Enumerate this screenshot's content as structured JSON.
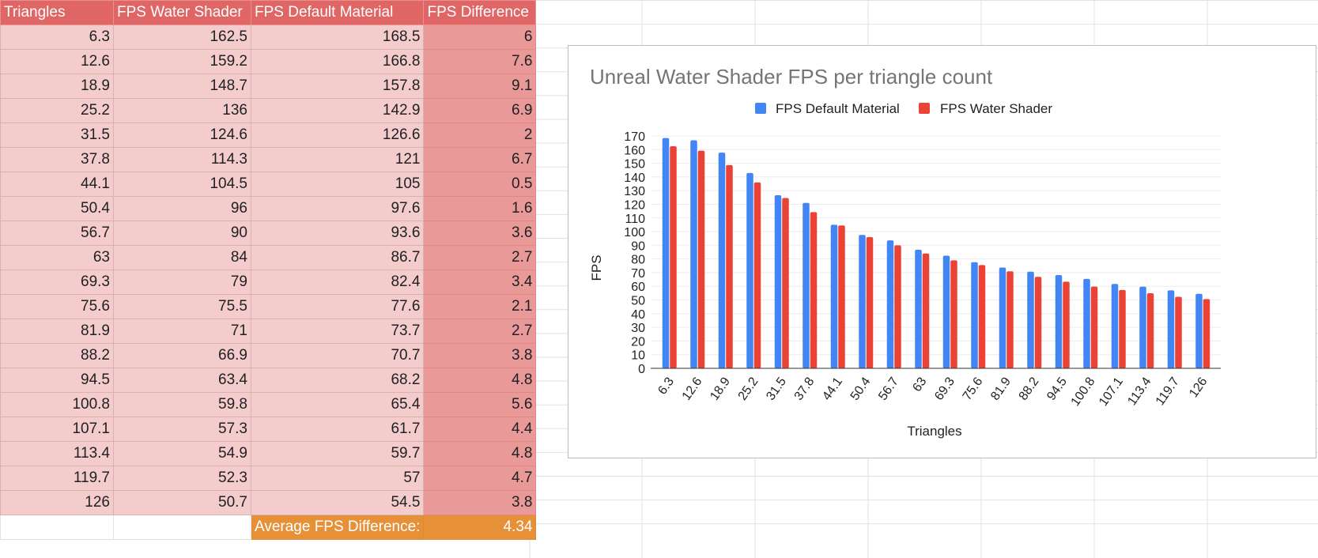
{
  "table": {
    "headers": [
      "Triangles",
      "FPS Water Shader",
      "FPS Default Material",
      "FPS Difference"
    ],
    "rows": [
      [
        "6.3",
        "162.5",
        "168.5",
        "6"
      ],
      [
        "12.6",
        "159.2",
        "166.8",
        "7.6"
      ],
      [
        "18.9",
        "148.7",
        "157.8",
        "9.1"
      ],
      [
        "25.2",
        "136",
        "142.9",
        "6.9"
      ],
      [
        "31.5",
        "124.6",
        "126.6",
        "2"
      ],
      [
        "37.8",
        "114.3",
        "121",
        "6.7"
      ],
      [
        "44.1",
        "104.5",
        "105",
        "0.5"
      ],
      [
        "50.4",
        "96",
        "97.6",
        "1.6"
      ],
      [
        "56.7",
        "90",
        "93.6",
        "3.6"
      ],
      [
        "63",
        "84",
        "86.7",
        "2.7"
      ],
      [
        "69.3",
        "79",
        "82.4",
        "3.4"
      ],
      [
        "75.6",
        "75.5",
        "77.6",
        "2.1"
      ],
      [
        "81.9",
        "71",
        "73.7",
        "2.7"
      ],
      [
        "88.2",
        "66.9",
        "70.7",
        "3.8"
      ],
      [
        "94.5",
        "63.4",
        "68.2",
        "4.8"
      ],
      [
        "100.8",
        "59.8",
        "65.4",
        "5.6"
      ],
      [
        "107.1",
        "57.3",
        "61.7",
        "4.4"
      ],
      [
        "113.4",
        "54.9",
        "59.7",
        "4.8"
      ],
      [
        "119.7",
        "52.3",
        "57",
        "4.7"
      ],
      [
        "126",
        "50.7",
        "54.5",
        "3.8"
      ]
    ],
    "average_label": "Average FPS Difference:",
    "average_value": "4.34"
  },
  "colors": {
    "header_bg": "#e06666",
    "cell_bg": "#f4cccc",
    "diff_bg": "#ea9999",
    "average_bg": "#e69138",
    "series_default": "#4285f4",
    "series_water": "#ea4335"
  },
  "chart_data": {
    "type": "bar",
    "title": "Unreal Water Shader FPS per triangle count",
    "xlabel": "Triangles",
    "ylabel": "FPS",
    "categories": [
      "6.3",
      "12.6",
      "18.9",
      "25.2",
      "31.5",
      "37.8",
      "44.1",
      "50.4",
      "56.7",
      "63",
      "69.3",
      "75.6",
      "81.9",
      "88.2",
      "94.5",
      "100.8",
      "107.1",
      "113.4",
      "119.7",
      "126"
    ],
    "series": [
      {
        "name": "FPS Default Material",
        "color": "#4285f4",
        "values": [
          168.5,
          166.8,
          157.8,
          142.9,
          126.6,
          121,
          105,
          97.6,
          93.6,
          86.7,
          82.4,
          77.6,
          73.7,
          70.7,
          68.2,
          65.4,
          61.7,
          59.7,
          57,
          54.5
        ]
      },
      {
        "name": "FPS Water Shader",
        "color": "#ea4335",
        "values": [
          162.5,
          159.2,
          148.7,
          136,
          124.6,
          114.3,
          104.5,
          96,
          90,
          84,
          79,
          75.5,
          71,
          66.9,
          63.4,
          59.8,
          57.3,
          54.9,
          52.3,
          50.7
        ]
      }
    ],
    "ylim": [
      0,
      170
    ],
    "yticks": [
      0,
      10,
      20,
      30,
      40,
      50,
      60,
      70,
      80,
      90,
      100,
      110,
      120,
      130,
      140,
      150,
      160,
      170
    ],
    "grid": true,
    "legend": "top"
  }
}
